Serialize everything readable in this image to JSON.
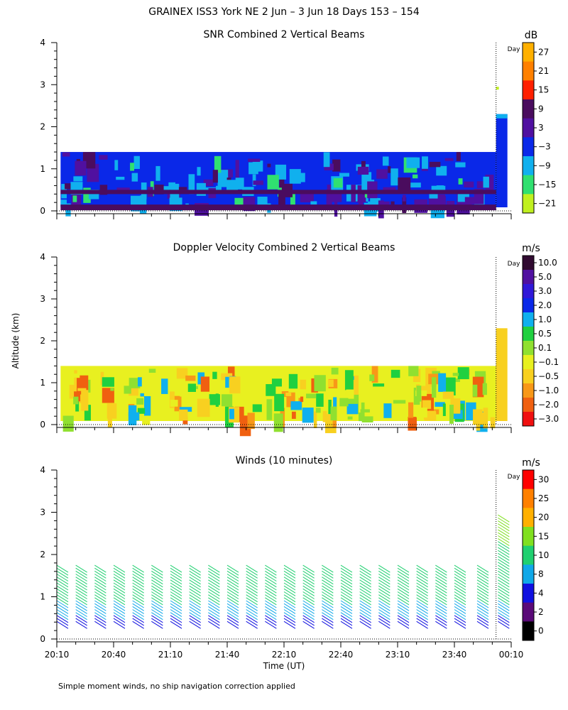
{
  "figure": {
    "title": "GRAINEX ISS3 York NE   2 Jun –  3 Jun 18 Days 153 – 154",
    "shared_ylabel": "Altitude (km)",
    "xlabel": "Time (UT)",
    "footnote": "Simple moment winds, no ship navigation correction applied",
    "colors": {
      "background": "#ffffff",
      "axis": "#000000"
    }
  },
  "chart_data": [
    {
      "type": "heatmap",
      "title": "SNR Combined 2 Vertical Beams",
      "x_ticks": [
        "20:10",
        "20:40",
        "21:10",
        "21:40",
        "22:10",
        "22:40",
        "23:10",
        "23:40",
        "00:10"
      ],
      "x_tick_minutes": [
        0,
        30,
        60,
        90,
        120,
        150,
        180,
        210,
        240
      ],
      "xlim_minutes": [
        0,
        240
      ],
      "y_ticks": [
        0,
        1,
        2,
        3,
        4
      ],
      "ylim": [
        0,
        4
      ],
      "day_marker": {
        "label": "Day",
        "minutes": 232
      },
      "colorbar": {
        "unit": "dB",
        "labels": [
          "27",
          "21",
          "15",
          "9",
          "3",
          "−3",
          "−9",
          "−15",
          "−21"
        ],
        "colors": [
          "#ffb000",
          "#ff8000",
          "#ff2000",
          "#4a0c5e",
          "#5010a0",
          "#0a28e8",
          "#10b0ee",
          "#30e070",
          "#c0f020"
        ]
      },
      "description_values": {
        "main_layer_top_km": 1.4,
        "late_layer_top_km": 2.3,
        "late_sparse_km": 2.95
      }
    },
    {
      "type": "heatmap",
      "title": "Doppler Velocity Combined 2 Vertical Beams",
      "x_ticks": [
        "20:10",
        "20:40",
        "21:10",
        "21:40",
        "22:10",
        "22:40",
        "23:10",
        "23:40",
        "00:10"
      ],
      "x_tick_minutes": [
        0,
        30,
        60,
        90,
        120,
        150,
        180,
        210,
        240
      ],
      "xlim_minutes": [
        0,
        240
      ],
      "y_ticks": [
        0,
        1,
        2,
        3,
        4
      ],
      "ylim": [
        0,
        4
      ],
      "day_marker": {
        "label": "Day",
        "minutes": 232
      },
      "colorbar": {
        "unit": "m/s",
        "labels": [
          "10.0",
          "5.0",
          "3.0",
          "2.0",
          "1.0",
          "0.5",
          "0.1",
          "−0.1",
          "−0.5",
          "−1.0",
          "−2.0",
          "−3.0"
        ],
        "colors": [
          "#300a30",
          "#5010a0",
          "#3018d8",
          "#0a28e8",
          "#10b0ee",
          "#20d040",
          "#90e030",
          "#e8f020",
          "#f8d020",
          "#f89818",
          "#f06010",
          "#f01010"
        ]
      },
      "description_values": {
        "main_layer_top_km": 1.4,
        "late_layer_top_km": 2.3
      }
    },
    {
      "type": "scatter",
      "title": "Winds (10 minutes)",
      "x_ticks": [
        "20:10",
        "20:40",
        "21:10",
        "21:40",
        "22:10",
        "22:40",
        "23:10",
        "23:40",
        "00:10"
      ],
      "x_tick_minutes": [
        0,
        30,
        60,
        90,
        120,
        150,
        180,
        210,
        240
      ],
      "xlim_minutes": [
        0,
        240
      ],
      "y_ticks": [
        0,
        1,
        2,
        3,
        4
      ],
      "ylim": [
        0,
        4
      ],
      "day_marker": {
        "label": "Day",
        "minutes": 232
      },
      "profile_minutes": [
        3,
        13,
        23,
        33,
        43,
        53,
        63,
        73,
        83,
        93,
        103,
        113,
        123,
        133,
        143,
        153,
        163,
        173,
        183,
        193,
        203,
        213,
        225,
        236
      ],
      "profile_top_km": [
        1.7,
        1.7,
        1.7,
        1.7,
        1.7,
        1.7,
        1.7,
        1.7,
        1.7,
        1.7,
        1.7,
        1.7,
        1.7,
        1.7,
        1.7,
        1.7,
        1.7,
        1.7,
        1.7,
        1.7,
        1.7,
        1.7,
        1.7,
        2.85
      ],
      "colorbar": {
        "unit": "m/s",
        "labels": [
          "30",
          "25",
          "20",
          "15",
          "10",
          "8",
          "4",
          "2",
          "0"
        ],
        "colors": [
          "#ff0000",
          "#ff8000",
          "#ffb000",
          "#80e020",
          "#20d070",
          "#10a8e8",
          "#1010e0",
          "#5a0a78",
          "#000000"
        ]
      }
    }
  ]
}
